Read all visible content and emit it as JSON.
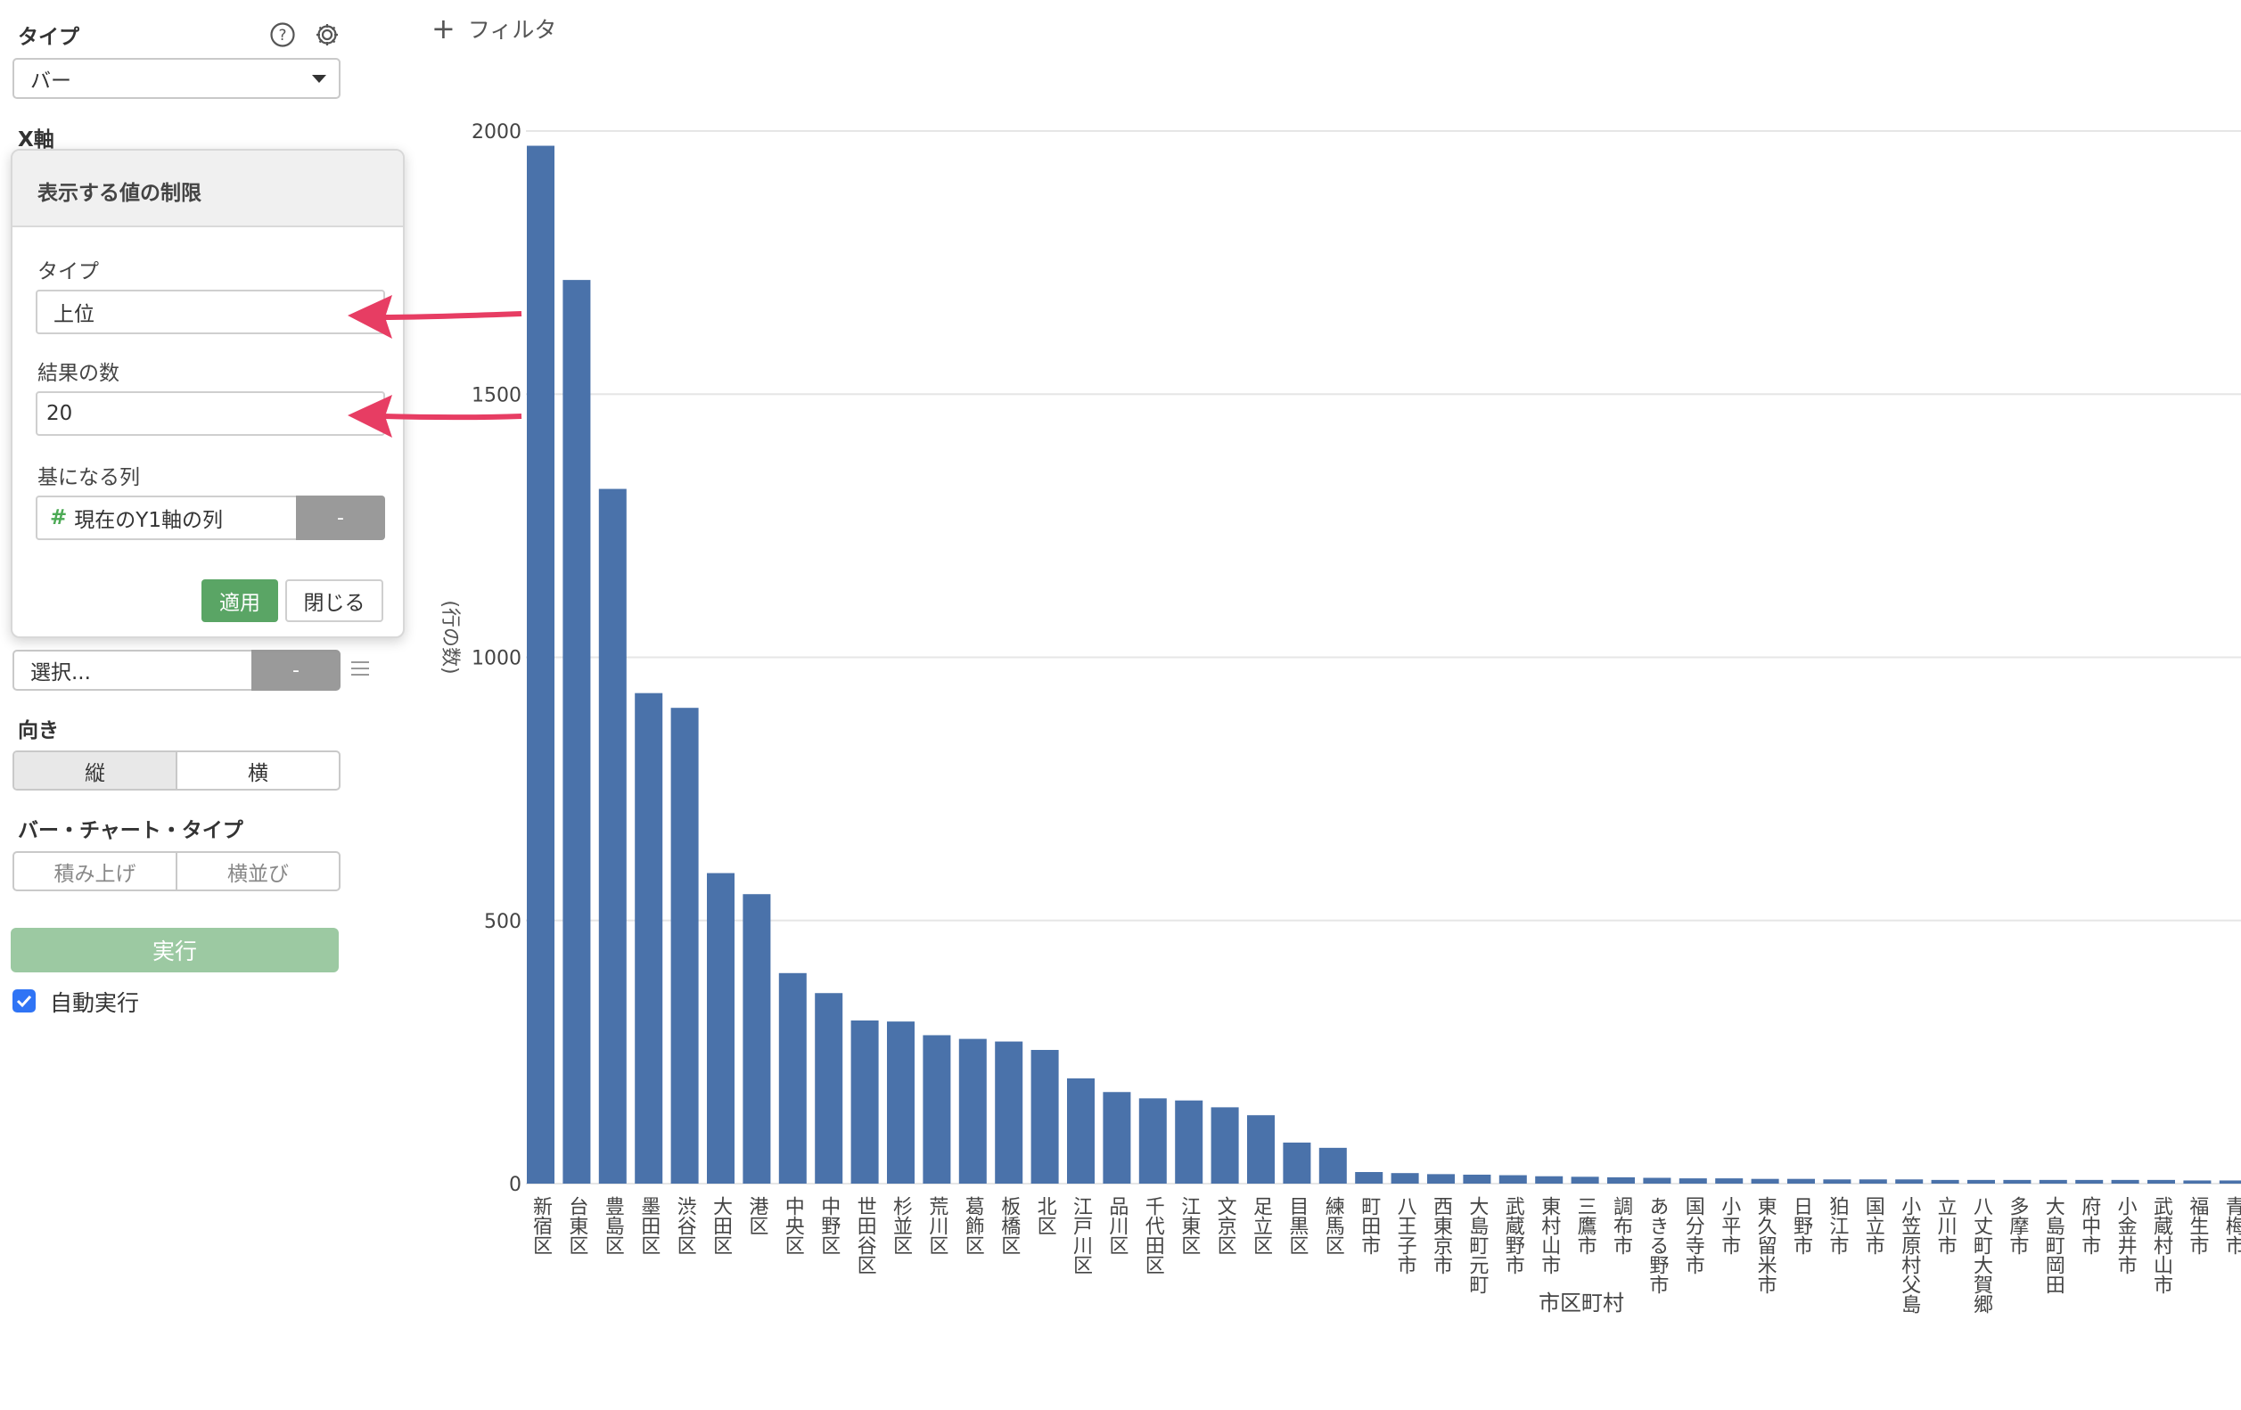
{
  "sidebar": {
    "type_label": "タイプ",
    "type_value": "バー",
    "xaxis_label": "X軸",
    "select_placeholder": "選択...",
    "select_button": "-",
    "orientation_label": "向き",
    "orientation_options": [
      "縦",
      "横"
    ],
    "orientation_selected": "縦",
    "bar_type_label": "バー・チャート・タイプ",
    "bar_type_options": [
      "積み上げ",
      "横並び"
    ],
    "run_label": "実行",
    "auto_run_label": "自動実行",
    "auto_run_checked": true
  },
  "popup": {
    "title": "表示する値の制限",
    "type_label": "タイプ",
    "type_value": "上位",
    "count_label": "結果の数",
    "count_value": "20",
    "column_label": "基になる列",
    "column_value": "現在のY1軸の列",
    "column_button": "-",
    "apply_label": "適用",
    "close_label": "閉じる"
  },
  "toolbar": {
    "filter_label": "フィルタ"
  },
  "colors": {
    "bar": "#4a72aa",
    "arrow": "#e73d63",
    "apply": "#5aa565",
    "run": "#9cc9a2"
  },
  "chart_data": {
    "type": "bar",
    "ylabel": "(行の数)",
    "ylim": [
      0,
      2000
    ],
    "yticks": [
      0,
      500,
      1000,
      1500,
      2000
    ],
    "categories": [
      "新宿区",
      "台東区",
      "豊島区",
      "墨田区",
      "渋谷区",
      "大田区",
      "港区",
      "中央区",
      "中野区",
      "世田谷区",
      "杉並区",
      "荒川区",
      "葛飾区",
      "板橋区",
      "北区",
      "江戸川区",
      "品川区",
      "千代田区",
      "江東区",
      "文京区",
      "足立区",
      "目黒区",
      "練馬区",
      "町田市",
      "八王子市",
      "西東京市",
      "大島町元町",
      "武蔵野市",
      "東村山市",
      "三鷹市",
      "調布市",
      "あきる野市",
      "国分寺市",
      "小平市",
      "東久留米市",
      "日野市",
      "狛江市",
      "国立市",
      "小笠原村父島",
      "立川市",
      "八丈町大賀郷",
      "多摩市",
      "大島町岡田",
      "府中市",
      "小金井市",
      "武蔵村山市",
      "福生市",
      "青梅市"
    ],
    "values": [
      1972,
      1717,
      1320,
      932,
      904,
      590,
      550,
      400,
      362,
      310,
      308,
      282,
      275,
      270,
      254,
      200,
      174,
      162,
      158,
      145,
      130,
      78,
      68,
      22,
      20,
      18,
      17,
      16,
      14,
      13,
      12,
      11,
      10,
      10,
      9,
      9,
      8,
      8,
      8,
      7,
      7,
      7,
      7,
      7,
      7,
      7,
      6,
      6
    ],
    "extra_label": "市区町村"
  }
}
